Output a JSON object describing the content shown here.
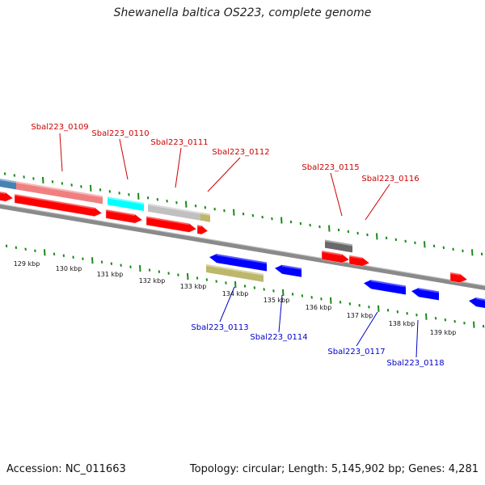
{
  "header": {
    "title": "Shewanella baltica OS223, complete genome"
  },
  "footer": {
    "accession": "Accession: NC_011663",
    "summary": "Topology: circular; Length: 5,145,902 bp; Genes: 4,281"
  },
  "colors": {
    "forward_label": "#cc0000",
    "reverse_label": "#0000cc",
    "tick": "#1a8a1a",
    "backbone": "#8a8a8a"
  },
  "scale": {
    "unit": "kbp",
    "labels": [
      {
        "text": "129 kbp"
      },
      {
        "text": "130 kbp"
      },
      {
        "text": "131 kbp"
      },
      {
        "text": "132 kbp"
      },
      {
        "text": "133 kbp"
      },
      {
        "text": "134 kbp"
      },
      {
        "text": "135 kbp"
      },
      {
        "text": "136 kbp"
      },
      {
        "text": "137 kbp"
      },
      {
        "text": "138 kbp"
      },
      {
        "text": "139 kbp"
      }
    ]
  },
  "genes": {
    "forward": [
      {
        "label": "Sbal223_0109",
        "color": "#f08080"
      },
      {
        "label": "Sbal223_0110",
        "color": "#00ffff"
      },
      {
        "label": "Sbal223_0111",
        "color": "#c0c0c0"
      },
      {
        "label": "Sbal223_0112",
        "color": "#bdb76b"
      },
      {
        "label": "Sbal223_0115",
        "color": "#696969"
      },
      {
        "label": "Sbal223_0116",
        "color": "#ff0000"
      }
    ],
    "reverse": [
      {
        "label": "Sbal223_0113",
        "color": "#bdb76b"
      },
      {
        "label": "Sbal223_0114",
        "color": "#0000ff"
      },
      {
        "label": "Sbal223_0117",
        "color": "#0000ff"
      },
      {
        "label": "Sbal223_0118",
        "color": "#0000ff"
      }
    ]
  }
}
